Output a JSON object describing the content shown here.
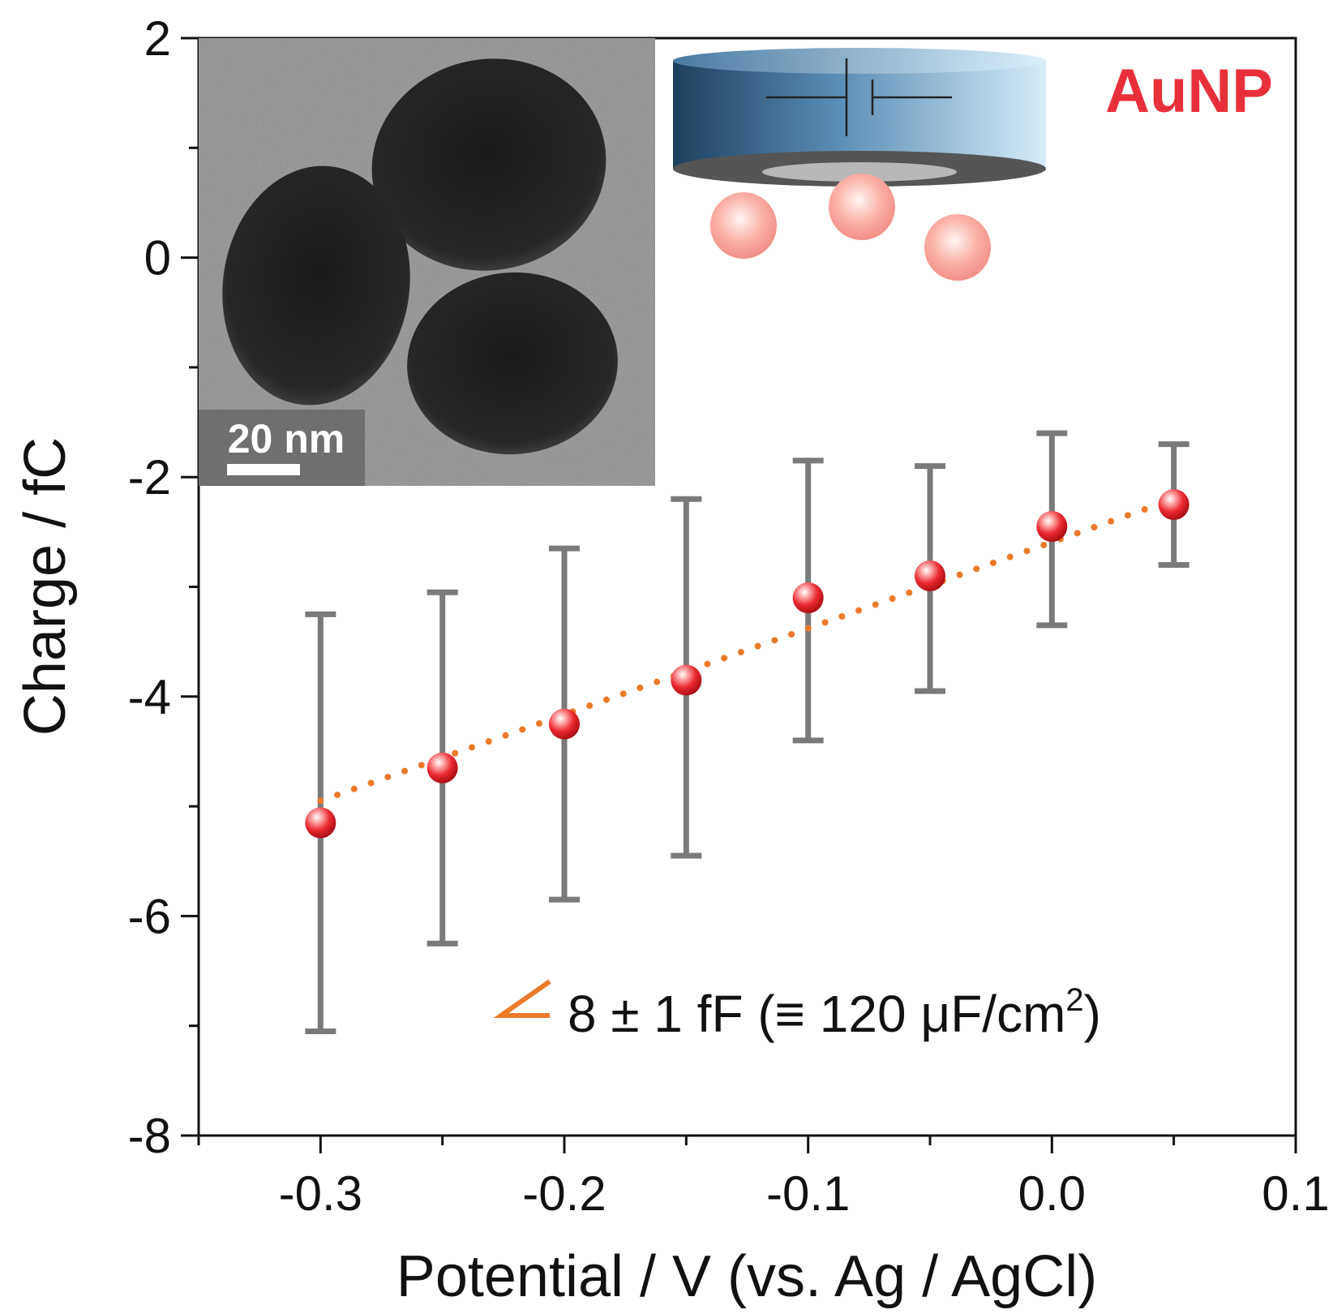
{
  "chart_data": {
    "type": "scatter",
    "xlabel": "Potential / V (vs. Ag / AgCl)",
    "ylabel": "Charge / fC",
    "xlim": [
      -0.35,
      0.1
    ],
    "ylim": [
      -8,
      2
    ],
    "xticks": [
      -0.3,
      -0.2,
      -0.1,
      0.0,
      0.1
    ],
    "xtick_labels": [
      "-0.3",
      "-0.2",
      "-0.1",
      "0.0",
      "0.1"
    ],
    "yticks": [
      -8,
      -6,
      -4,
      -2,
      0,
      2
    ],
    "ytick_labels": [
      "-8",
      "-6",
      "-4",
      "-2",
      "0",
      "2"
    ],
    "series": [
      {
        "x": [
          -0.3,
          -0.25,
          -0.2,
          -0.15,
          -0.1,
          -0.05,
          0.0,
          0.05
        ],
        "y": [
          -5.15,
          -4.65,
          -4.25,
          -3.85,
          -3.1,
          -2.9,
          -2.45,
          -2.25
        ],
        "err_low": [
          -7.05,
          -6.25,
          -5.85,
          -5.45,
          -4.4,
          -3.95,
          -3.35,
          -2.8
        ],
        "err_high": [
          -3.25,
          -3.05,
          -2.65,
          -2.2,
          -1.85,
          -1.9,
          -1.6,
          -1.7
        ],
        "marker_color": "#e8202a",
        "errorbar_color": "#7a7a7a"
      }
    ],
    "fit_line": {
      "x": [
        -0.3,
        0.05
      ],
      "y": [
        -4.95,
        -2.2
      ],
      "style": "dotted",
      "color": "#ec7a28"
    },
    "annotations": {
      "fit_text": "8 ± 1 fF (≡ 120 μF/cm",
      "fit_superscript": "2",
      "fit_close": ")",
      "sample_label": "AuNP",
      "sample_label_color": "#e8303a",
      "scale_bar": "20 nm"
    },
    "grid": false,
    "inset_image": "TEM micrograph of three gold nanoparticles",
    "inset_schematic": "electrode with capacitor symbol and nanoparticles"
  }
}
